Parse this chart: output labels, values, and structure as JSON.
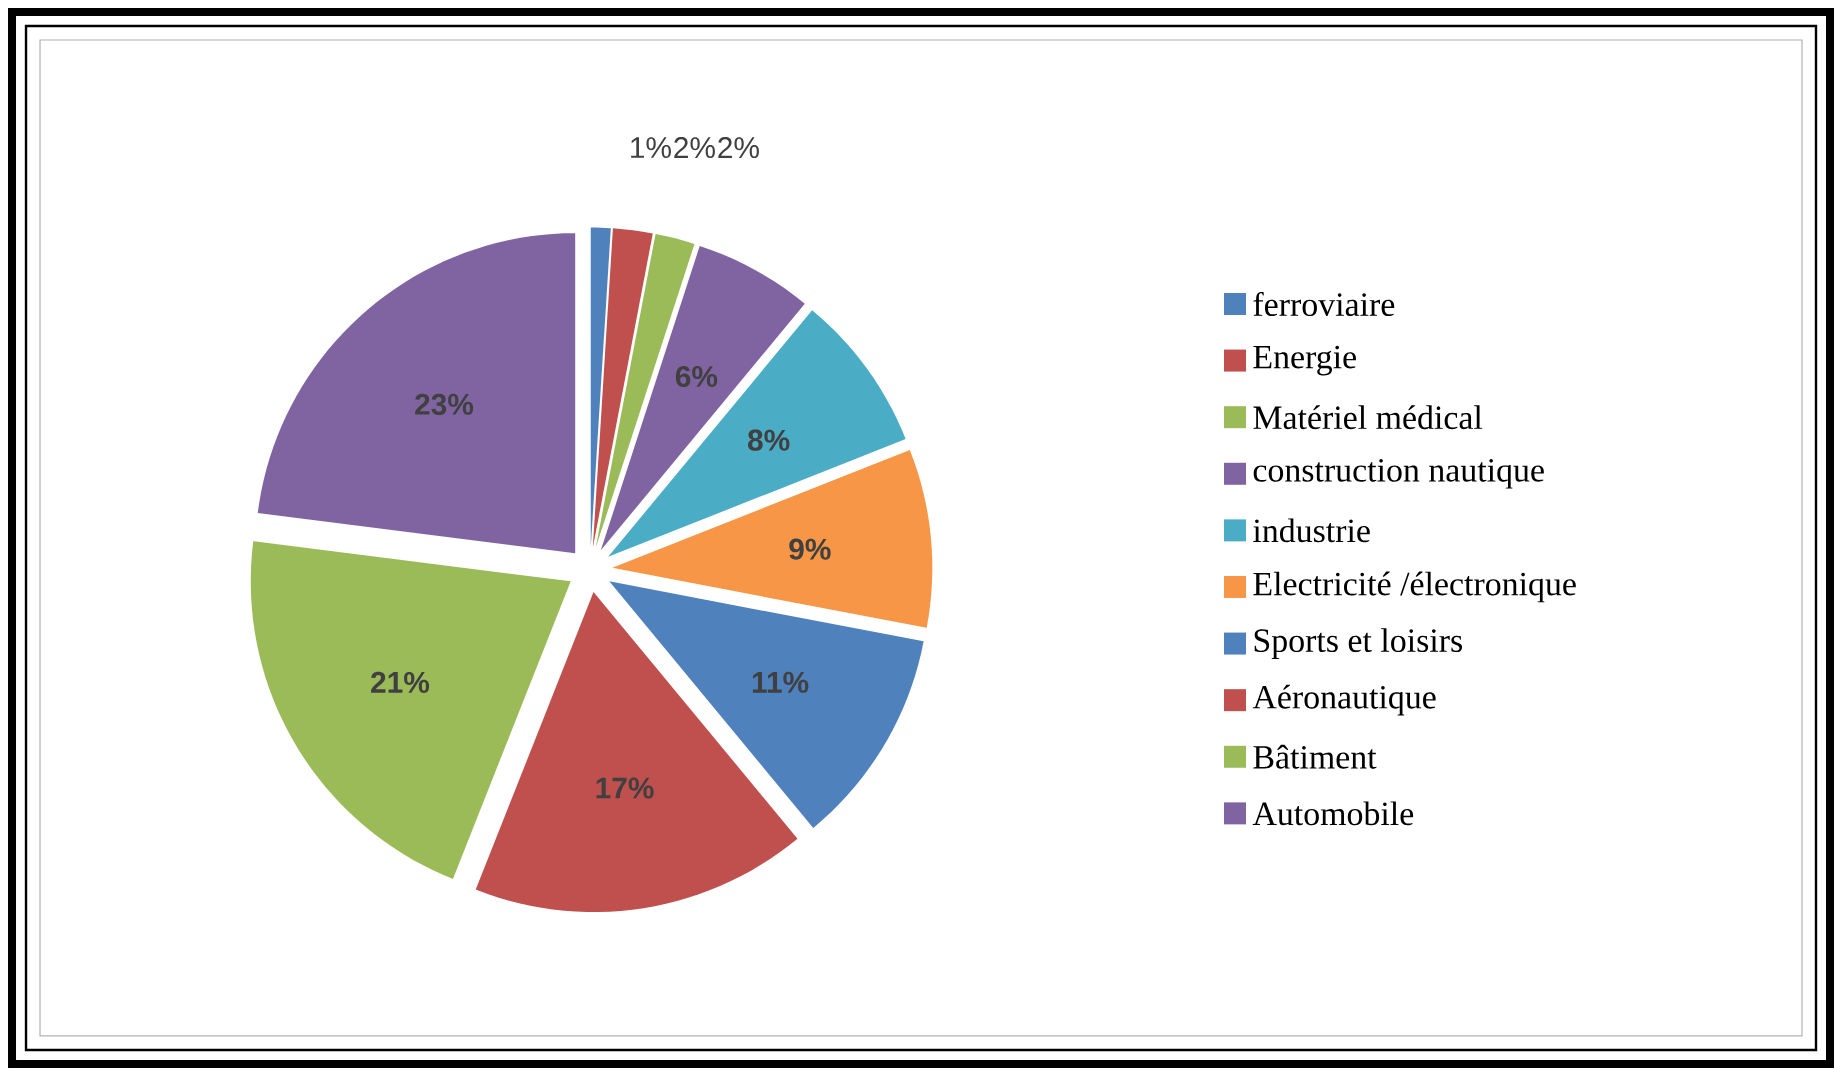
{
  "chart_data": {
    "type": "pie",
    "categories": [
      "ferroviaire",
      "Energie",
      "Matériel  médical",
      "construction nautique",
      "industrie",
      "Electricité /électronique",
      "Sports et loisirs",
      "Aéronautique",
      "Bâtiment",
      "Automobile"
    ],
    "values": [
      1,
      2,
      2,
      6,
      8,
      9,
      11,
      17,
      21,
      23
    ],
    "colors": [
      "#4f81bd",
      "#c0504d",
      "#9bbb59",
      "#8064a2",
      "#4bacc6",
      "#f79646",
      "#4f81bd",
      "#c0504d",
      "#9bbb59",
      "#8064a2"
    ],
    "value_labels": [
      "1%",
      "2%",
      "2%",
      "6%",
      "8%",
      "9%",
      "11%",
      "17%",
      "21%",
      "23%"
    ],
    "legend": "right"
  }
}
